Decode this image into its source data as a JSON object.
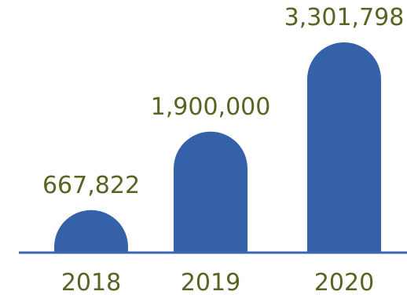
{
  "colors": {
    "bar": "#3461a8",
    "axis": "#3a66ad",
    "text": "#5a6322"
  },
  "chart_data": {
    "type": "bar",
    "title": "",
    "xlabel": "",
    "ylabel": "",
    "categories": [
      "2018",
      "2019",
      "2020"
    ],
    "values": [
      667822,
      1900000,
      3301798
    ],
    "data_labels": [
      "667,822",
      "1,900,000",
      "3,301,798"
    ],
    "grid": false,
    "legend": "none"
  }
}
